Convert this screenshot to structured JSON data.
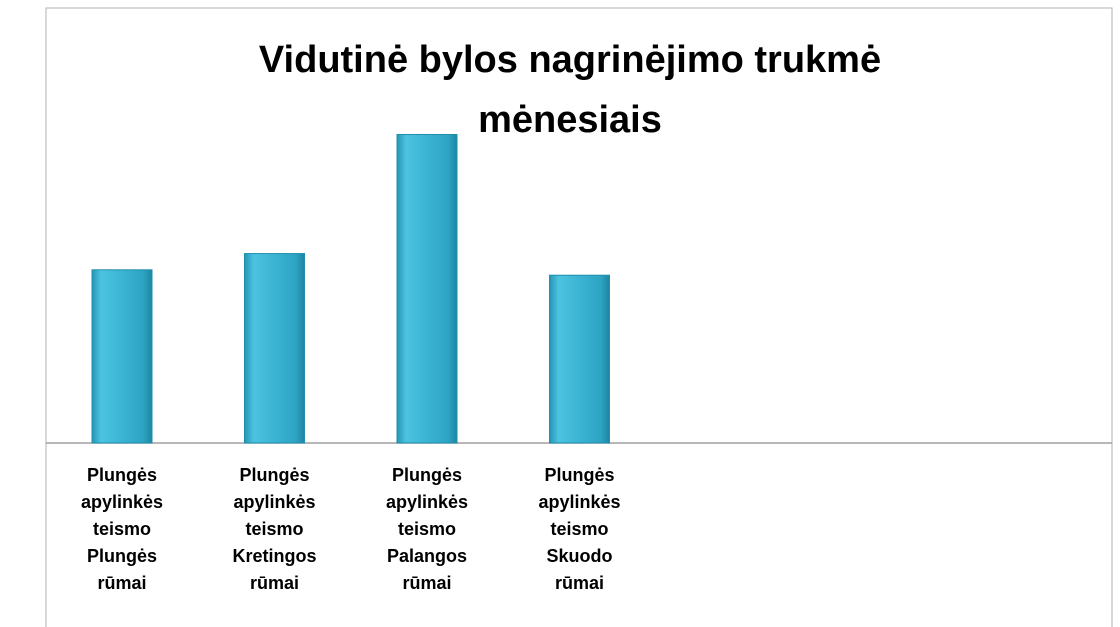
{
  "chart_data": {
    "type": "bar",
    "title": "Vidutinė bylos nagrinėjimo trukmė mėnesiais",
    "categories": [
      "Plungės apylinkės teismo Plungės rūmai",
      "Plungės apylinkės teismo Kretingos rūmai",
      "Plungės apylinkės teismo Palangos rūmai",
      "Plungės apylinkės teismo Skuodo rūmai"
    ],
    "values": [
      3.2,
      3.5,
      5.7,
      3.1
    ],
    "color": "#3bb3d3",
    "ylim": [
      0,
      8
    ]
  }
}
